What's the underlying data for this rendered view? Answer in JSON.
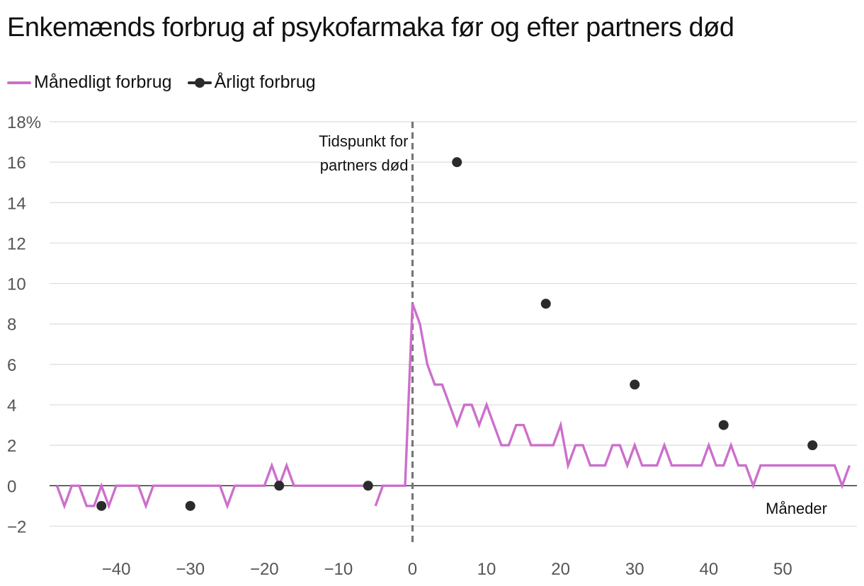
{
  "chart_data": {
    "type": "line",
    "title": "Enkemænds forbrug af psykofarmaka før og efter partners død",
    "xlabel": "Måneder",
    "ylabel": "",
    "xlim": [
      -49,
      60
    ],
    "ylim": [
      -3,
      18
    ],
    "x_ticks": [
      -40,
      -30,
      -20,
      -10,
      0,
      10,
      20,
      30,
      40,
      50
    ],
    "x_tick_labels": [
      "−40",
      "−30",
      "−20",
      "−10",
      "0",
      "10",
      "20",
      "30",
      "40",
      "50"
    ],
    "y_ticks": [
      -2,
      0,
      2,
      4,
      6,
      8,
      10,
      12,
      14,
      16,
      18
    ],
    "y_tick_labels": [
      "−2",
      "0",
      "2",
      "4",
      "6",
      "8",
      "10",
      "12",
      "14",
      "16",
      "18%"
    ],
    "annotation": "Tidspunkt for partners død",
    "annotation_lines": [
      "Tidspunkt for",
      "partners død"
    ],
    "annotation_x": 0,
    "series": [
      {
        "name": "Månedligt forbrug",
        "type": "line",
        "color": "#cc6fcc",
        "segments": [
          {
            "x": [
              -48,
              -47,
              -46,
              -45,
              -44,
              -43,
              -42,
              -41,
              -40,
              -39,
              -38,
              -37,
              -36,
              -35,
              -34,
              -33,
              -32,
              -31,
              -30,
              -29,
              -28,
              -27,
              -26,
              -25,
              -24,
              -23,
              -22,
              -21,
              -20,
              -19,
              -18,
              -17,
              -16,
              -15,
              -14,
              -13,
              -12,
              -11,
              -10,
              -9,
              -8,
              -7,
              -6
            ],
            "y": [
              0,
              -1,
              0,
              0,
              -1,
              -1,
              0,
              -1,
              0,
              0,
              0,
              0,
              -1,
              0,
              0,
              0,
              0,
              0,
              0,
              0,
              0,
              0,
              0,
              -1,
              0,
              0,
              0,
              0,
              0,
              1,
              0,
              1,
              0,
              0,
              0,
              0,
              0,
              0,
              0,
              0,
              0,
              0,
              0
            ]
          },
          {
            "x": [
              -5,
              -4,
              -3,
              -2,
              -1,
              0,
              1,
              2,
              3,
              4,
              5,
              6,
              7,
              8,
              9,
              10,
              11,
              12,
              13,
              14,
              15,
              16,
              17,
              18,
              19,
              20,
              21,
              22,
              23,
              24,
              25,
              26,
              27,
              28,
              29,
              30,
              31,
              32,
              33,
              34,
              35,
              36,
              37,
              38,
              39,
              40,
              41,
              42,
              43,
              44,
              45,
              46,
              47,
              48,
              49,
              50,
              51,
              52,
              53,
              54,
              55,
              56,
              57,
              58,
              59
            ],
            "y": [
              -1,
              0,
              0,
              0,
              0,
              9,
              8,
              6,
              5,
              5,
              4,
              3,
              4,
              4,
              3,
              4,
              3,
              2,
              2,
              3,
              3,
              2,
              2,
              2,
              2,
              3,
              1,
              2,
              2,
              1,
              1,
              1,
              2,
              2,
              1,
              2,
              1,
              1,
              1,
              2,
              1,
              1,
              1,
              1,
              1,
              2,
              1,
              1,
              2,
              1,
              1,
              0,
              1,
              1,
              1,
              1,
              1,
              1,
              1,
              1,
              1,
              1,
              1,
              0,
              1
            ]
          }
        ]
      },
      {
        "name": "Årligt forbrug",
        "type": "scatter",
        "color": "#2b2b2b",
        "x": [
          -42,
          -30,
          -18,
          -6,
          6,
          18,
          30,
          42,
          54
        ],
        "y": [
          -1,
          -1,
          0,
          0,
          16,
          9,
          5,
          3,
          2
        ]
      }
    ]
  }
}
